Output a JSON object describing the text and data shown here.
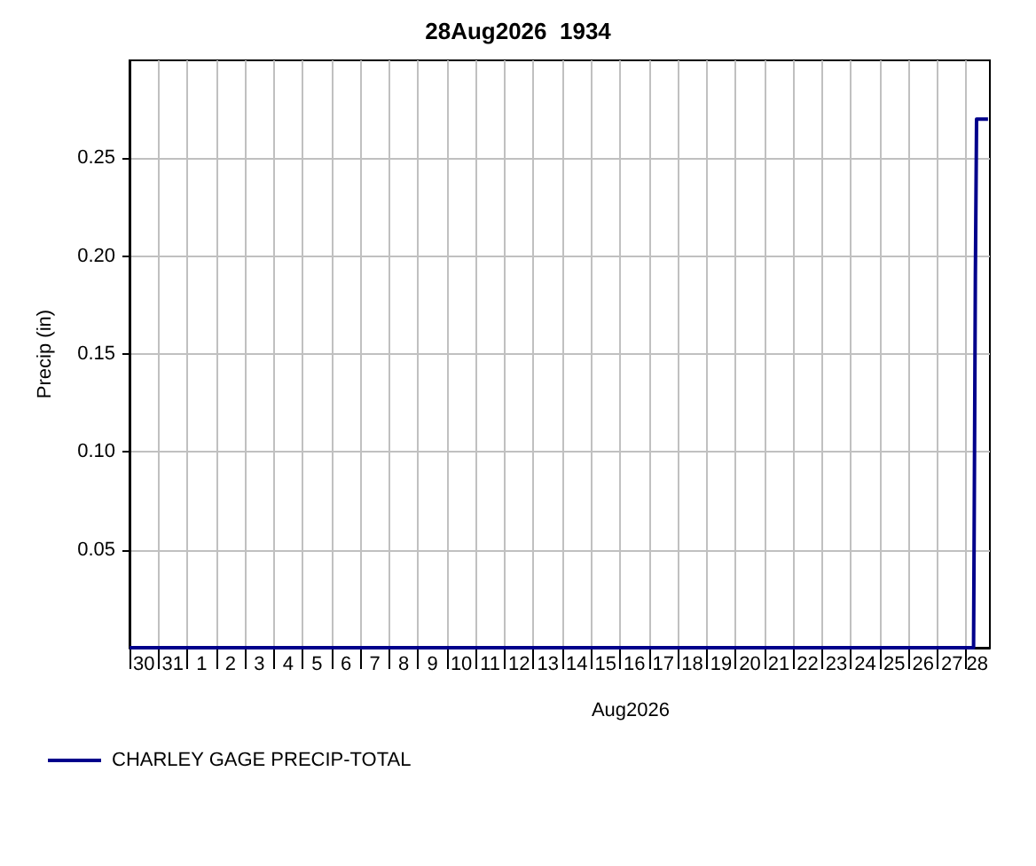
{
  "chart_data": {
    "type": "step",
    "title": "28Aug2026  1934",
    "xlabel": "Aug2026",
    "ylabel": "Precip (in)",
    "xlim": [
      "2026-07-30T00:00",
      "2026-08-28T19:34"
    ],
    "xticks": [
      {
        "value": "2026-07-30",
        "label": null
      },
      {
        "value": "2026-07-31",
        "label": null
      },
      {
        "value": "2026-08-01",
        "label": null
      },
      {
        "value": "2026-08-02",
        "label": null
      },
      {
        "value": "2026-08-03",
        "label": null
      },
      {
        "value": "2026-08-04",
        "label": null
      },
      {
        "value": "2026-08-05",
        "label": null
      },
      {
        "value": "2026-08-06",
        "label": null
      },
      {
        "value": "2026-08-07",
        "label": null
      },
      {
        "value": "2026-08-08",
        "label": null
      },
      {
        "value": "2026-08-09",
        "label": null
      },
      {
        "value": "2026-08-10",
        "label": null
      },
      {
        "value": "2026-08-11",
        "label": null
      },
      {
        "value": "2026-08-12",
        "label": null
      },
      {
        "value": "2026-08-13",
        "label": null
      },
      {
        "value": "2026-08-14",
        "label": null
      },
      {
        "value": "2026-08-15",
        "label": null
      },
      {
        "value": "2026-08-16",
        "label": null
      },
      {
        "value": "2026-08-17",
        "label": null
      },
      {
        "value": "2026-08-18",
        "label": null
      },
      {
        "value": "2026-08-19",
        "label": null
      },
      {
        "value": "2026-08-20",
        "label": null
      },
      {
        "value": "2026-08-21",
        "label": null
      },
      {
        "value": "2026-08-22",
        "label": null
      },
      {
        "value": "2026-08-23",
        "label": null
      },
      {
        "value": "2026-08-24",
        "label": null
      },
      {
        "value": "2026-08-25",
        "label": null
      },
      {
        "value": "2026-08-26",
        "label": null
      },
      {
        "value": "2026-08-27",
        "label": null
      },
      {
        "value": "2026-08-28",
        "label": null
      },
      {
        "value": "2026-07-30T12:00",
        "label": "30"
      },
      {
        "value": "2026-07-31T12:00",
        "label": "31"
      },
      {
        "value": "2026-08-01T12:00",
        "label": "1"
      },
      {
        "value": "2026-08-02T12:00",
        "label": "2"
      },
      {
        "value": "2026-08-03T12:00",
        "label": "3"
      },
      {
        "value": "2026-08-04T12:00",
        "label": "4"
      },
      {
        "value": "2026-08-05T12:00",
        "label": "5"
      },
      {
        "value": "2026-08-06T12:00",
        "label": "6"
      },
      {
        "value": "2026-08-07T12:00",
        "label": "7"
      },
      {
        "value": "2026-08-08T12:00",
        "label": "8"
      },
      {
        "value": "2026-08-09T12:00",
        "label": "9"
      },
      {
        "value": "2026-08-10T12:00",
        "label": "10"
      },
      {
        "value": "2026-08-11T12:00",
        "label": "11"
      },
      {
        "value": "2026-08-12T12:00",
        "label": "12"
      },
      {
        "value": "2026-08-13T12:00",
        "label": "13"
      },
      {
        "value": "2026-08-14T12:00",
        "label": "14"
      },
      {
        "value": "2026-08-15T12:00",
        "label": "15"
      },
      {
        "value": "2026-08-16T12:00",
        "label": "16"
      },
      {
        "value": "2026-08-17T12:00",
        "label": "17"
      },
      {
        "value": "2026-08-18T12:00",
        "label": "18"
      },
      {
        "value": "2026-08-19T12:00",
        "label": "19"
      },
      {
        "value": "2026-08-20T12:00",
        "label": "20"
      },
      {
        "value": "2026-08-21T12:00",
        "label": "21"
      },
      {
        "value": "2026-08-22T12:00",
        "label": "22"
      },
      {
        "value": "2026-08-23T12:00",
        "label": "23"
      },
      {
        "value": "2026-08-24T12:00",
        "label": "24"
      },
      {
        "value": "2026-08-25T12:00",
        "label": "25"
      },
      {
        "value": "2026-08-26T12:00",
        "label": "26"
      },
      {
        "value": "2026-08-27T12:00",
        "label": "27"
      },
      {
        "value": "2026-08-28T09:00",
        "label": "28"
      }
    ],
    "ylim": [
      0,
      0.3
    ],
    "yticks": [
      0.05,
      {
        "value": 0.1,
        "label": "0.10"
      },
      0.15,
      {
        "value": 0.2,
        "label": "0.20"
      },
      0.25
    ],
    "grid": true,
    "legend": "bottom left",
    "marker": "none",
    "series": [
      {
        "name": "CHARLEY GAGE PRECIP-TOTAL",
        "color": "#00008b",
        "x": [
          "2026-07-30T00:00",
          "2026-08-10T00:00",
          "2026-08-20T00:00",
          "2026-08-28T06:00",
          "2026-08-28T06:30",
          "2026-08-28T07:30",
          "2026-08-28T08:30",
          "2026-08-28T18:00"
        ],
        "values": [
          0,
          0,
          0,
          0,
          0.06,
          0.19,
          0.27,
          0.27
        ]
      }
    ]
  }
}
